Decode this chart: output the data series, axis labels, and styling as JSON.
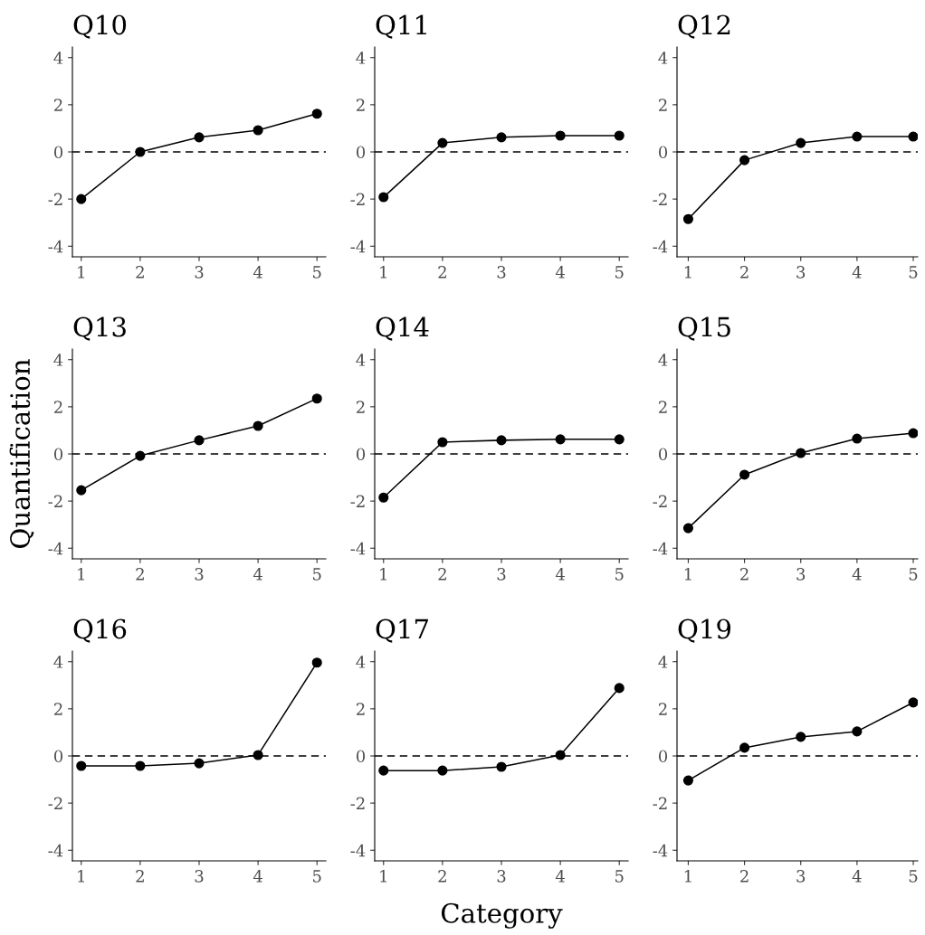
{
  "chart_data": [
    {
      "type": "line",
      "title": "Q10",
      "x": [
        1,
        2,
        3,
        4,
        5
      ],
      "series": [
        {
          "color": "#000000",
          "values": [
            -2.0,
            0.0,
            0.62,
            0.92,
            1.62
          ]
        }
      ],
      "xlim": [
        0.85,
        5.15
      ],
      "ylim": [
        -4.45,
        4.45
      ],
      "xticks": [
        1,
        2,
        3,
        4,
        5
      ],
      "yticks": [
        -4,
        -2,
        0,
        2,
        4
      ],
      "marker": "circle",
      "line_style": "solid",
      "grid": false,
      "legend": false,
      "ref_lines": [
        {
          "axis": "y",
          "value": 0,
          "line_style": "dashed",
          "color": "#000000"
        }
      ]
    },
    {
      "type": "line",
      "title": "Q11",
      "x": [
        1,
        2,
        3,
        4,
        5
      ],
      "series": [
        {
          "color": "#000000",
          "values": [
            -1.92,
            0.38,
            0.62,
            0.69,
            0.69
          ]
        }
      ],
      "xlim": [
        0.85,
        5.15
      ],
      "ylim": [
        -4.45,
        4.45
      ],
      "xticks": [
        1,
        2,
        3,
        4,
        5
      ],
      "yticks": [
        -4,
        -2,
        0,
        2,
        4
      ],
      "marker": "circle",
      "line_style": "solid",
      "grid": false,
      "legend": false,
      "ref_lines": [
        {
          "axis": "y",
          "value": 0,
          "line_style": "dashed",
          "color": "#000000"
        }
      ]
    },
    {
      "type": "line",
      "title": "Q12",
      "x": [
        1,
        2,
        3,
        4,
        5
      ],
      "series": [
        {
          "color": "#000000",
          "values": [
            -2.85,
            -0.35,
            0.38,
            0.65,
            0.65
          ]
        }
      ],
      "xlim": [
        0.8,
        5.08
      ],
      "ylim": [
        -4.45,
        4.45
      ],
      "xticks": [
        1,
        2,
        3,
        4,
        5
      ],
      "yticks": [
        -4,
        -2,
        0,
        2,
        4
      ],
      "marker": "circle",
      "line_style": "solid",
      "grid": false,
      "legend": false,
      "ref_lines": [
        {
          "axis": "y",
          "value": 0,
          "line_style": "dashed",
          "color": "#000000"
        }
      ]
    },
    {
      "type": "line",
      "title": "Q13",
      "ylabel": "Quantification",
      "x": [
        1,
        2,
        3,
        4,
        5
      ],
      "series": [
        {
          "color": "#000000",
          "values": [
            -1.54,
            -0.08,
            0.58,
            1.19,
            2.35
          ]
        }
      ],
      "xlim": [
        0.85,
        5.15
      ],
      "ylim": [
        -4.45,
        4.45
      ],
      "xticks": [
        1,
        2,
        3,
        4,
        5
      ],
      "yticks": [
        -4,
        -2,
        0,
        2,
        4
      ],
      "marker": "circle",
      "line_style": "solid",
      "grid": false,
      "legend": false,
      "ref_lines": [
        {
          "axis": "y",
          "value": 0,
          "line_style": "dashed",
          "color": "#000000"
        }
      ]
    },
    {
      "type": "line",
      "title": "Q14",
      "x": [
        1,
        2,
        3,
        4,
        5
      ],
      "series": [
        {
          "color": "#000000",
          "values": [
            -1.85,
            0.5,
            0.58,
            0.62,
            0.62
          ]
        }
      ],
      "xlim": [
        0.85,
        5.15
      ],
      "ylim": [
        -4.45,
        4.45
      ],
      "xticks": [
        1,
        2,
        3,
        4,
        5
      ],
      "yticks": [
        -4,
        -2,
        0,
        2,
        4
      ],
      "marker": "circle",
      "line_style": "solid",
      "grid": false,
      "legend": false,
      "ref_lines": [
        {
          "axis": "y",
          "value": 0,
          "line_style": "dashed",
          "color": "#000000"
        }
      ]
    },
    {
      "type": "line",
      "title": "Q15",
      "x": [
        1,
        2,
        3,
        4,
        5
      ],
      "series": [
        {
          "color": "#000000",
          "values": [
            -3.15,
            -0.88,
            0.04,
            0.65,
            0.88
          ]
        }
      ],
      "xlim": [
        0.8,
        5.08
      ],
      "ylim": [
        -4.45,
        4.45
      ],
      "xticks": [
        1,
        2,
        3,
        4,
        5
      ],
      "yticks": [
        -4,
        -2,
        0,
        2,
        4
      ],
      "marker": "circle",
      "line_style": "solid",
      "grid": false,
      "legend": false,
      "ref_lines": [
        {
          "axis": "y",
          "value": 0,
          "line_style": "dashed",
          "color": "#000000"
        }
      ]
    },
    {
      "type": "line",
      "title": "Q16",
      "x": [
        1,
        2,
        3,
        4,
        5
      ],
      "series": [
        {
          "color": "#000000",
          "values": [
            -0.42,
            -0.42,
            -0.31,
            0.04,
            3.96
          ]
        }
      ],
      "xlim": [
        0.85,
        5.15
      ],
      "ylim": [
        -4.45,
        4.45
      ],
      "xticks": [
        1,
        2,
        3,
        4,
        5
      ],
      "yticks": [
        -4,
        -2,
        0,
        2,
        4
      ],
      "marker": "circle",
      "line_style": "solid",
      "grid": false,
      "legend": false,
      "ref_lines": [
        {
          "axis": "y",
          "value": 0,
          "line_style": "dashed",
          "color": "#000000"
        }
      ]
    },
    {
      "type": "line",
      "title": "Q17",
      "xlabel": "Category",
      "x": [
        1,
        2,
        3,
        4,
        5
      ],
      "series": [
        {
          "color": "#000000",
          "values": [
            -0.62,
            -0.62,
            -0.46,
            0.04,
            2.88
          ]
        }
      ],
      "xlim": [
        0.85,
        5.15
      ],
      "ylim": [
        -4.45,
        4.45
      ],
      "xticks": [
        1,
        2,
        3,
        4,
        5
      ],
      "yticks": [
        -4,
        -2,
        0,
        2,
        4
      ],
      "marker": "circle",
      "line_style": "solid",
      "grid": false,
      "legend": false,
      "ref_lines": [
        {
          "axis": "y",
          "value": 0,
          "line_style": "dashed",
          "color": "#000000"
        }
      ]
    },
    {
      "type": "line",
      "title": "Q19",
      "x": [
        1,
        2,
        3,
        4,
        5
      ],
      "series": [
        {
          "color": "#000000",
          "values": [
            -1.04,
            0.35,
            0.81,
            1.04,
            2.27
          ]
        }
      ],
      "xlim": [
        0.8,
        5.08
      ],
      "ylim": [
        -4.45,
        4.45
      ],
      "xticks": [
        1,
        2,
        3,
        4,
        5
      ],
      "yticks": [
        -4,
        -2,
        0,
        2,
        4
      ],
      "marker": "circle",
      "line_style": "solid",
      "grid": false,
      "legend": false,
      "ref_lines": [
        {
          "axis": "y",
          "value": 0,
          "line_style": "dashed",
          "color": "#000000"
        }
      ]
    }
  ]
}
